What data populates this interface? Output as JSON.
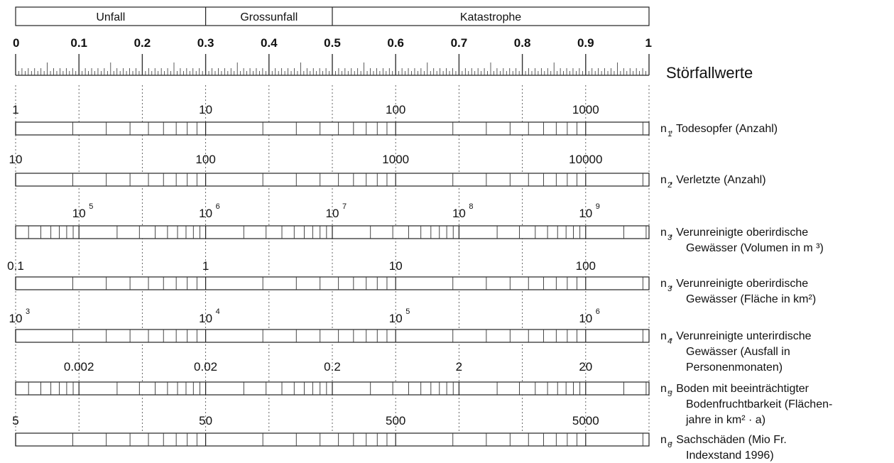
{
  "header": {
    "segments": [
      {
        "label": "Unfall",
        "from": 0.0,
        "to": 0.3
      },
      {
        "label": "Grossunfall",
        "from": 0.3,
        "to": 0.5
      },
      {
        "label": "Katastrophe",
        "from": 0.5,
        "to": 1.0
      }
    ],
    "tick_labels": [
      "0",
      "0.1",
      "0.2",
      "0.3",
      "0.4",
      "0.5",
      "0.6",
      "0.7",
      "0.8",
      "0.9",
      "1"
    ],
    "title": "Störfallwerte"
  },
  "scales": [
    {
      "id": "n1",
      "subscript": "1",
      "caption_lines": [
        "n , Todesopfer (Anzahl)"
      ],
      "decades": [
        {
          "at": 0.0,
          "label": "1"
        },
        {
          "at": 0.3,
          "label": "10"
        },
        {
          "at": 0.6,
          "label": "100"
        },
        {
          "at": 0.9,
          "label": "1000"
        }
      ],
      "log_bar": true
    },
    {
      "id": "n2",
      "subscript": "2",
      "caption_lines": [
        "n , Verletzte (Anzahl)"
      ],
      "decades": [
        {
          "at": 0.0,
          "label": "10"
        },
        {
          "at": 0.3,
          "label": "100"
        },
        {
          "at": 0.6,
          "label": "1000"
        },
        {
          "at": 0.9,
          "label": "10000"
        }
      ],
      "log_bar": true
    },
    {
      "id": "n3v",
      "subscript": "3",
      "caption_lines": [
        "n , Verunreinigte oberirdische",
        "Gewässer (Volumen in m ³)"
      ],
      "decades": [
        {
          "at": 0.1,
          "label": "10",
          "exp": "5"
        },
        {
          "at": 0.3,
          "label": "10",
          "exp": "6"
        },
        {
          "at": 0.5,
          "label": "10",
          "exp": "7"
        },
        {
          "at": 0.7,
          "label": "10",
          "exp": "8"
        },
        {
          "at": 0.9,
          "label": "10",
          "exp": "9"
        }
      ],
      "log_bar": true
    },
    {
      "id": "n3f",
      "subscript": "3",
      "caption_lines": [
        "n , Verunreinigte oberirdische",
        "Gewässer (Fläche in km²)"
      ],
      "decades": [
        {
          "at": 0.0,
          "label": "0.1"
        },
        {
          "at": 0.3,
          "label": "1"
        },
        {
          "at": 0.6,
          "label": "10"
        },
        {
          "at": 0.9,
          "label": "100"
        }
      ],
      "log_bar": true
    },
    {
      "id": "n4",
      "subscript": "4",
      "caption_lines": [
        "n , Verunreinigte unterirdische",
        "Gewässer (Ausfall in",
        "Personenmonaten)"
      ],
      "decades": [
        {
          "at": 0.0,
          "label": "10",
          "exp": "3"
        },
        {
          "at": 0.3,
          "label": "10",
          "exp": "4"
        },
        {
          "at": 0.6,
          "label": "10",
          "exp": "5"
        },
        {
          "at": 0.9,
          "label": "10",
          "exp": "6"
        }
      ],
      "log_bar": true
    },
    {
      "id": "n5",
      "subscript": "5",
      "caption_lines": [
        "n , Boden mit beeinträchtigter",
        "Bodenfruchtbarkeit (Flächen-",
        "jahre in km² · a)"
      ],
      "decades": [
        {
          "at": 0.1,
          "label": "0.002"
        },
        {
          "at": 0.3,
          "label": "0.02"
        },
        {
          "at": 0.5,
          "label": "0.2"
        },
        {
          "at": 0.7,
          "label": "2"
        },
        {
          "at": 0.9,
          "label": "20"
        }
      ],
      "log_bar": true
    },
    {
      "id": "n6",
      "subscript": "6",
      "caption_lines": [
        "n , Sachschäden (Mio Fr.",
        "Indexstand 1996)"
      ],
      "decades": [
        {
          "at": 0.0,
          "label": "5"
        },
        {
          "at": 0.3,
          "label": "50"
        },
        {
          "at": 0.6,
          "label": "500"
        },
        {
          "at": 0.9,
          "label": "5000"
        }
      ],
      "log_bar": true
    }
  ]
}
